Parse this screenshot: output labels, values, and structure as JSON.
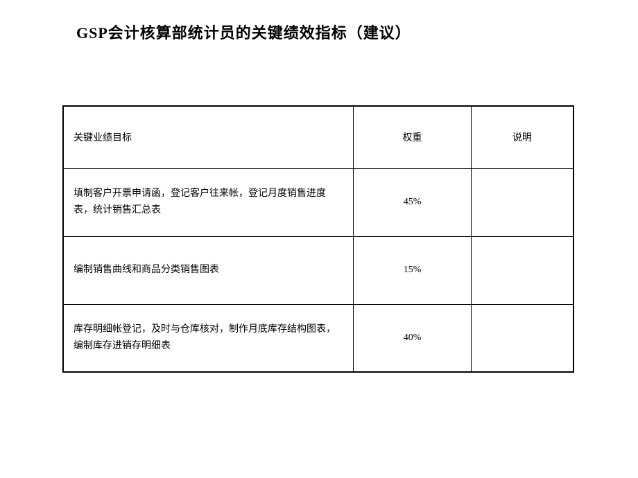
{
  "title": "GSP会计核算部统计员的关键绩效指标（建议）",
  "table": {
    "columns": [
      "关键业绩目标",
      "权重",
      "说明"
    ],
    "rows": [
      {
        "goal": "填制客户开票申请函，登记客户往来帐，登记月度销售进度表，统计销售汇总表",
        "weight": "45%",
        "note": ""
      },
      {
        "goal": "编制销售曲线和商品分类销售图表",
        "weight": "15%",
        "note": ""
      },
      {
        "goal": "库存明细帐登记，及时与仓库核对，制作月底库存结构图表，编制库存进销存明细表",
        "weight": "40%",
        "note": ""
      }
    ]
  }
}
